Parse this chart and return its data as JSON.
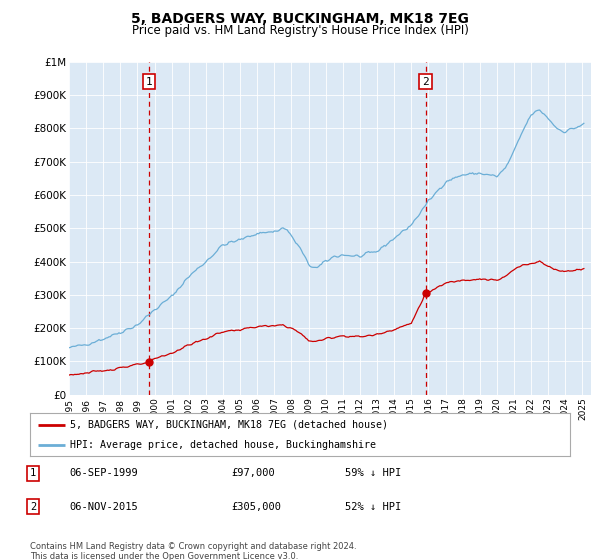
{
  "title": "5, BADGERS WAY, BUCKINGHAM, MK18 7EG",
  "subtitle": "Price paid vs. HM Land Registry's House Price Index (HPI)",
  "plot_bg_color": "#dce9f5",
  "hpi_color": "#6baed6",
  "price_color": "#cc0000",
  "vline_color": "#cc0000",
  "ylim_max": 1000000,
  "yticks": [
    0,
    100000,
    200000,
    300000,
    400000,
    500000,
    600000,
    700000,
    800000,
    900000,
    1000000
  ],
  "ytick_labels": [
    "£0",
    "£100K",
    "£200K",
    "£300K",
    "£400K",
    "£500K",
    "£600K",
    "£700K",
    "£800K",
    "£900K",
    "£1M"
  ],
  "sale1_year": 1999.67,
  "sale1_price": 97000,
  "sale2_year": 2015.83,
  "sale2_price": 305000,
  "sale1_date": "06-SEP-1999",
  "sale1_price_str": "£97,000",
  "sale1_note": "59% ↓ HPI",
  "sale2_date": "06-NOV-2015",
  "sale2_price_str": "£305,000",
  "sale2_note": "52% ↓ HPI",
  "legend_red": "5, BADGERS WAY, BUCKINGHAM, MK18 7EG (detached house)",
  "legend_blue": "HPI: Average price, detached house, Buckinghamshire",
  "footer": "Contains HM Land Registry data © Crown copyright and database right 2024.\nThis data is licensed under the Open Government Licence v3.0.",
  "xlim_min": 1995,
  "xlim_max": 2025.5
}
